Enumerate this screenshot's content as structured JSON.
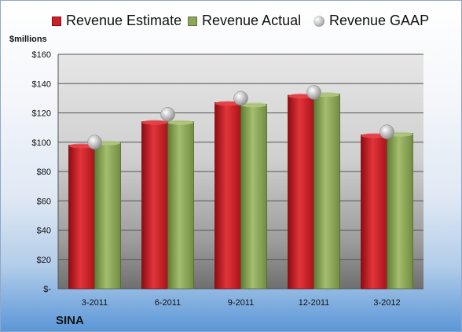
{
  "chart_data": {
    "type": "bar",
    "unit_label": "$millions",
    "company": "SINA",
    "categories": [
      "3-2011",
      "6-2011",
      "9-2011",
      "12-2011",
      "3-2012"
    ],
    "series": [
      {
        "name": "Revenue Estimate",
        "type": "bar",
        "color": "#cc1f26",
        "values": [
          98,
          114,
          127,
          132,
          105
        ]
      },
      {
        "name": "Revenue Actual",
        "type": "bar",
        "color": "#8ea65a",
        "values": [
          100,
          114,
          126,
          133,
          106
        ]
      },
      {
        "name": "Revenue GAAP",
        "type": "marker",
        "color": "#b8b8b8",
        "values": [
          100,
          119,
          130,
          134,
          107
        ]
      }
    ],
    "yticks": [
      "$-",
      "$20",
      "$40",
      "$60",
      "$80",
      "$100",
      "$120",
      "$140",
      "$160"
    ],
    "ylim": [
      0,
      160
    ],
    "grid": true,
    "legend": "top"
  }
}
